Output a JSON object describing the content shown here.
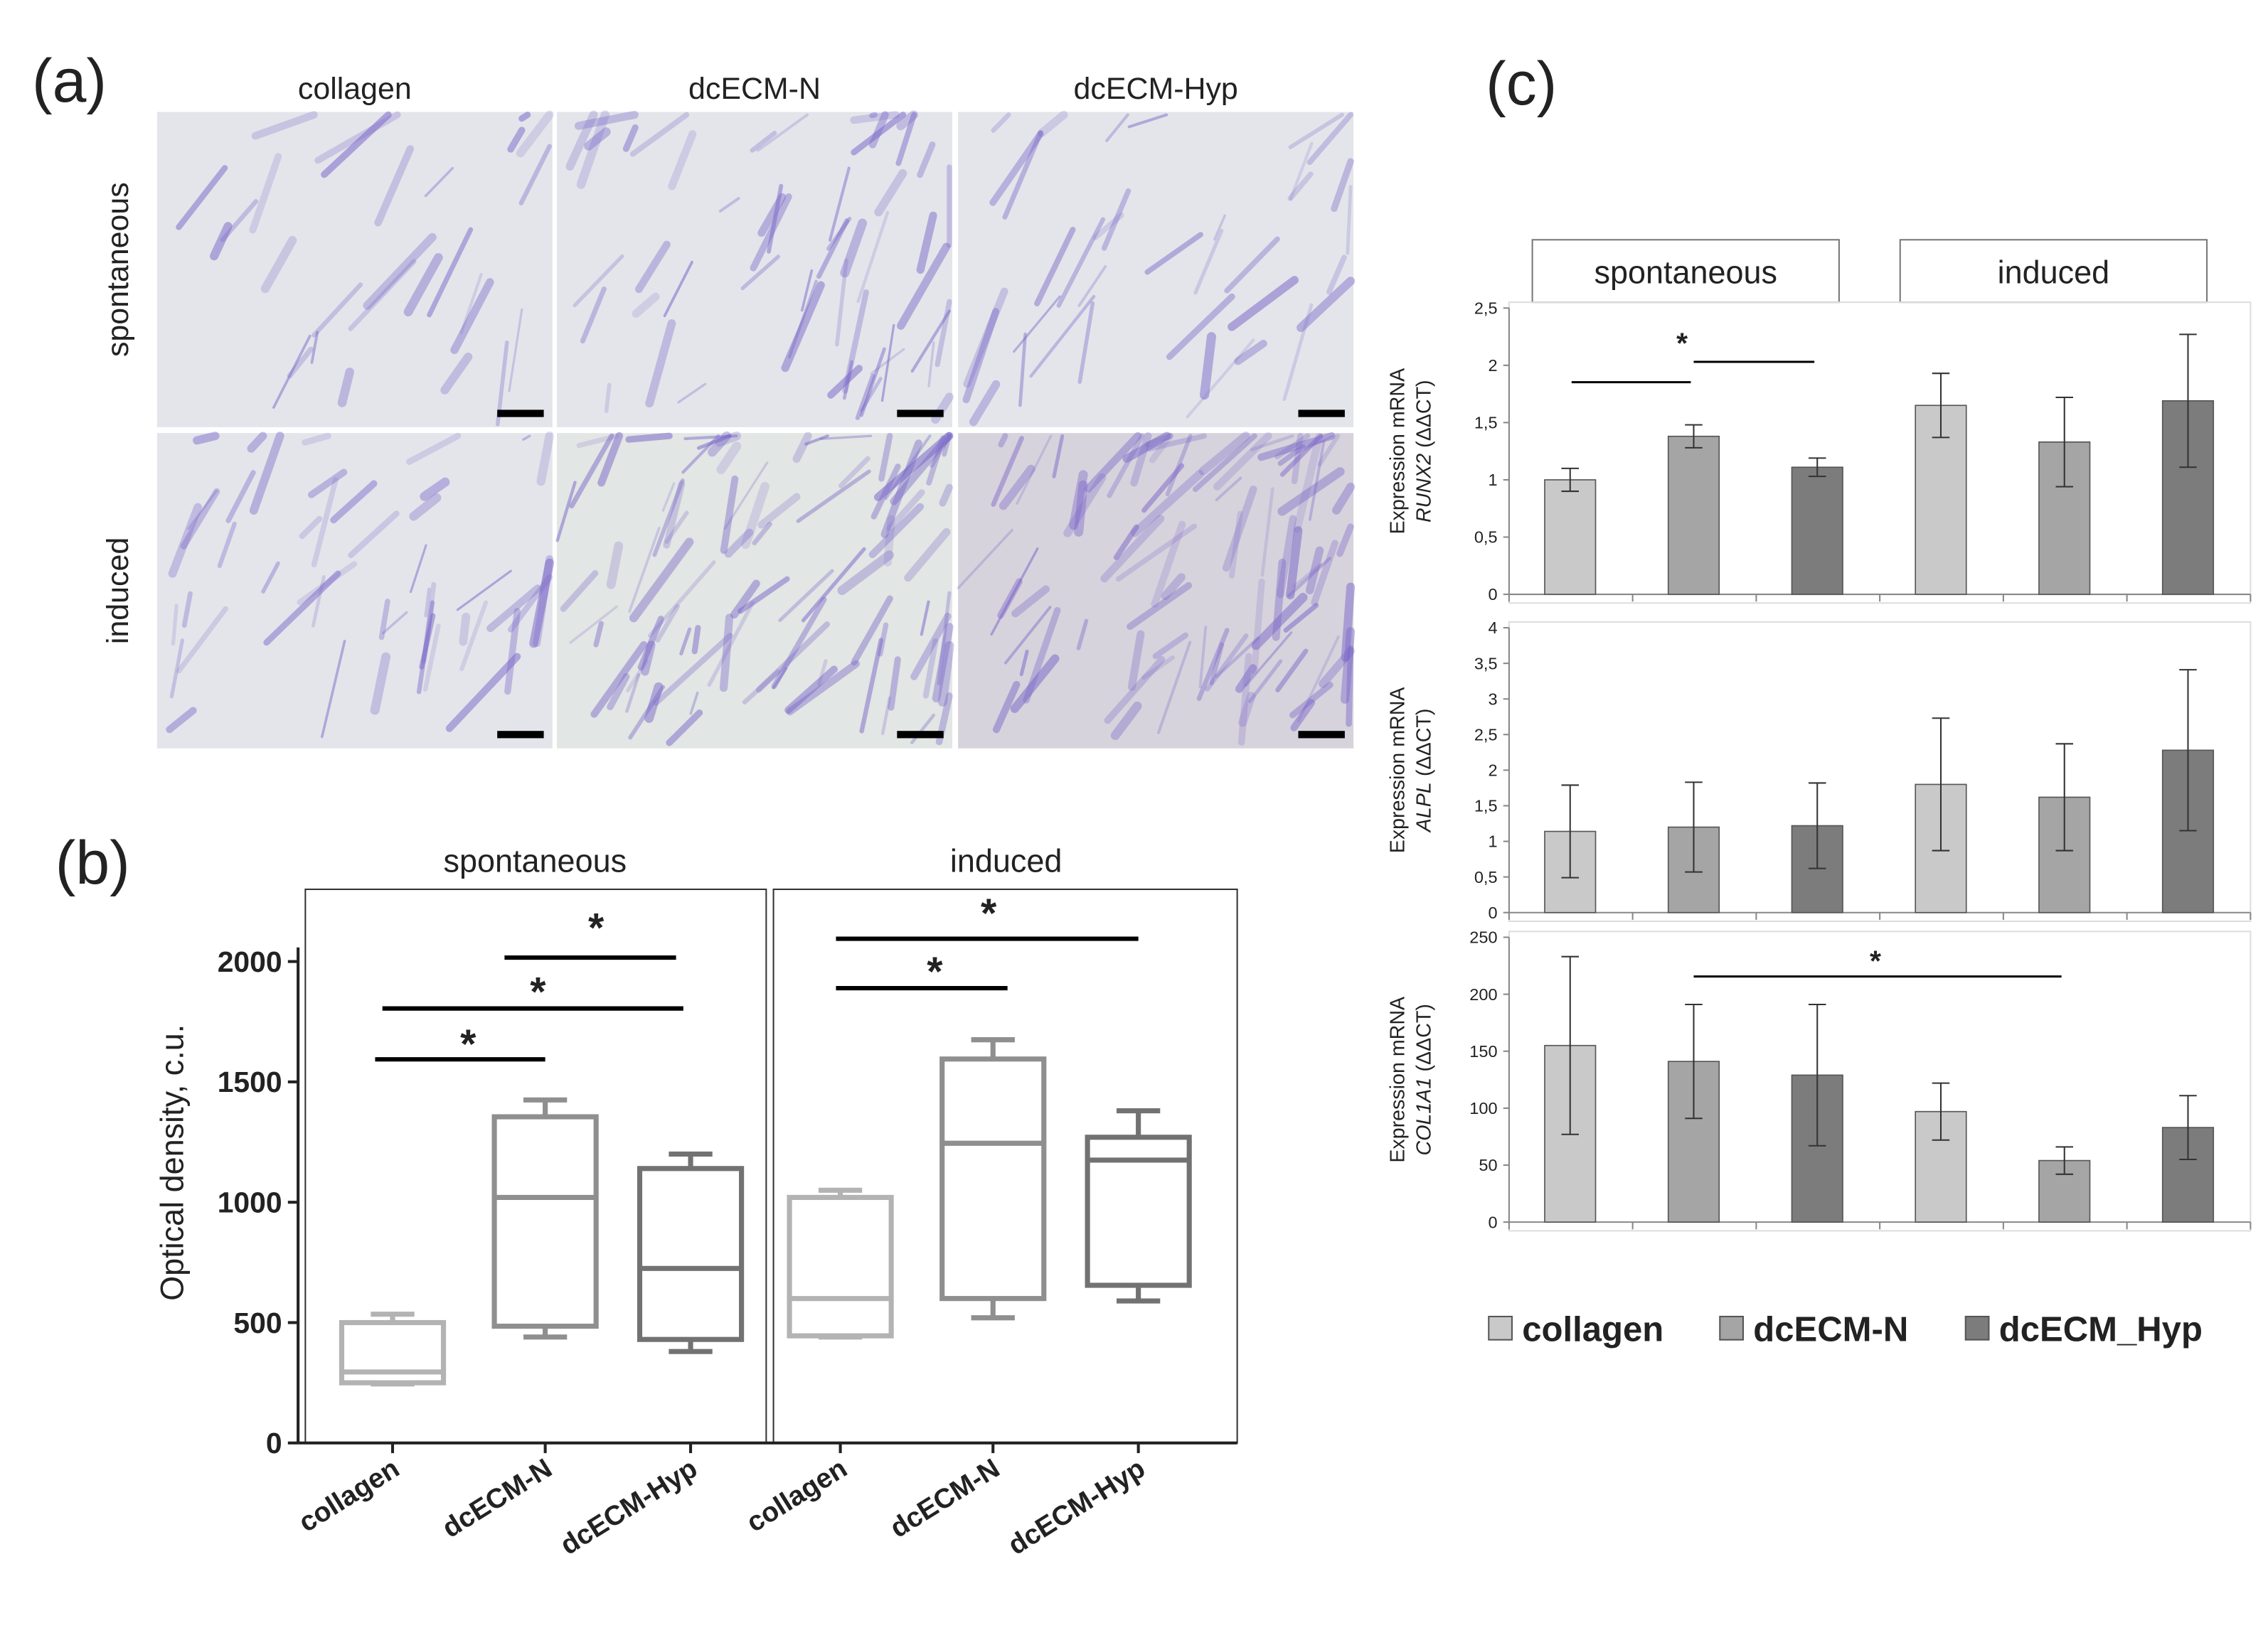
{
  "figure": {
    "panel_labels": [
      "(a)",
      "(b)",
      "(c)"
    ],
    "micrographs": {
      "columns": [
        "collagen",
        "dcECM-N",
        "dcECM-Hyp"
      ],
      "rows": [
        "spontaneous",
        "induced"
      ]
    }
  },
  "chart_data": [
    {
      "type": "box",
      "ylabel": "Optical density, c.u.",
      "groups": [
        "spontaneous",
        "induced"
      ],
      "categories": [
        "collagen",
        "dcECM-N",
        "dcECM-Hyp",
        "collagen",
        "dcECM-N",
        "dcECM-Hyp"
      ],
      "colors": [
        "#b3b3b3",
        "#8f8f8f",
        "#727272"
      ],
      "boxes": [
        {
          "min": 245,
          "q1": 250,
          "median": 295,
          "q3": 500,
          "max": 535
        },
        {
          "min": 440,
          "q1": 485,
          "median": 1020,
          "q3": 1355,
          "max": 1425
        },
        {
          "min": 380,
          "q1": 430,
          "median": 725,
          "q3": 1140,
          "max": 1200
        },
        {
          "min": 440,
          "q1": 445,
          "median": 600,
          "q3": 1020,
          "max": 1050
        },
        {
          "min": 520,
          "q1": 600,
          "median": 1245,
          "q3": 1595,
          "max": 1675
        },
        {
          "min": 590,
          "q1": 655,
          "median": 1175,
          "q3": 1270,
          "max": 1380
        }
      ],
      "ylim": [
        0,
        2300
      ],
      "yticks": [
        0,
        500,
        1000,
        1500,
        2000
      ],
      "annotations": [
        "*",
        "*",
        "*",
        "*",
        "*"
      ]
    },
    {
      "type": "bar",
      "groups": [
        "spontaneous",
        "induced"
      ],
      "series": [
        {
          "name": "collagen",
          "color": "#c9c9c9"
        },
        {
          "name": "dcECM-N",
          "color": "#a5a5a5"
        },
        {
          "name": "dcECM_Hyp",
          "color": "#7c7c7c"
        }
      ],
      "panels": [
        {
          "ylabel": "Expression mRNA",
          "gene": "RUNX2",
          "unit": "(ΔΔCT)",
          "ylim": [
            0,
            2.5
          ],
          "yticks": [
            0,
            {
              "value": 0.5,
              "label": "0,5"
            },
            1,
            {
              "value": 1.5,
              "label": "1,5"
            },
            2,
            {
              "value": 2.5,
              "label": "2,5"
            }
          ],
          "values": [
            1.0,
            1.38,
            1.11,
            1.65,
            1.33,
            1.69
          ],
          "errors": [
            0.1,
            0.1,
            0.08,
            0.28,
            0.39,
            0.58
          ],
          "annotations": [
            "*"
          ]
        },
        {
          "ylabel": "Expression mRNA",
          "gene": "ALPL",
          "unit": "(ΔΔCT)",
          "ylim": [
            0,
            4
          ],
          "yticks": [
            0,
            {
              "value": 0.5,
              "label": "0,5"
            },
            1,
            {
              "value": 1.5,
              "label": "1,5"
            },
            2,
            {
              "value": 2.5,
              "label": "2,5"
            },
            3,
            {
              "value": 3.5,
              "label": "3,5"
            },
            4
          ],
          "values": [
            1.14,
            1.2,
            1.22,
            1.8,
            1.62,
            2.28
          ],
          "errors": [
            0.65,
            0.63,
            0.6,
            0.93,
            0.75,
            1.13
          ],
          "annotations": []
        },
        {
          "ylabel": "Expression mRNA",
          "gene": "COL1A1",
          "unit": "(ΔΔCT)",
          "ylim": [
            0,
            250
          ],
          "yticks": [
            0,
            50,
            100,
            150,
            200,
            250
          ],
          "values": [
            155,
            141,
            129,
            97,
            54,
            83
          ],
          "errors": [
            78,
            50,
            62,
            25,
            12,
            28
          ],
          "annotations": [
            "*"
          ]
        }
      ]
    }
  ]
}
